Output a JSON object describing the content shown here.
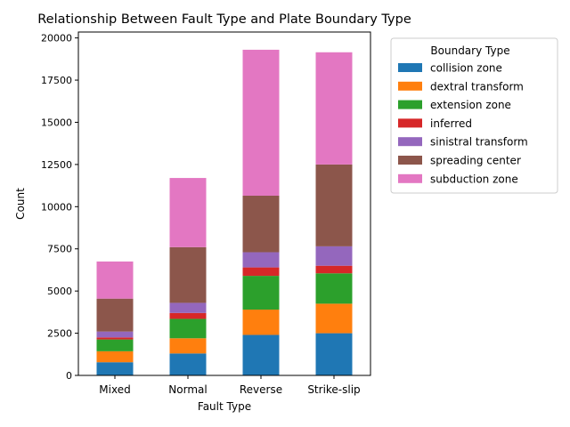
{
  "chart_data": {
    "type": "bar",
    "stacked": true,
    "title": "Relationship Between Fault Type and Plate Boundary Type",
    "xlabel": "Fault Type",
    "ylabel": "Count",
    "categories": [
      "Mixed",
      "Normal",
      "Reverse",
      "Strike-slip"
    ],
    "ylim": [
      0,
      20350
    ],
    "yticks": [
      0,
      2500,
      5000,
      7500,
      10000,
      12500,
      15000,
      17500,
      20000
    ],
    "grid": false,
    "legend_title": "Boundary Type",
    "legend_position": "outside right, top",
    "series": [
      {
        "name": "collision zone",
        "color": "#1f77b4",
        "values": [
          780,
          1300,
          2400,
          2500
        ]
      },
      {
        "name": "dextral transform",
        "color": "#ff7f0e",
        "values": [
          650,
          900,
          1500,
          1750
        ]
      },
      {
        "name": "extension zone",
        "color": "#2ca02c",
        "values": [
          700,
          1150,
          2000,
          1800
        ]
      },
      {
        "name": "inferred",
        "color": "#d62728",
        "values": [
          120,
          350,
          500,
          450
        ]
      },
      {
        "name": "sinistral transform",
        "color": "#9467bd",
        "values": [
          350,
          600,
          900,
          1150
        ]
      },
      {
        "name": "spreading center",
        "color": "#8c564b",
        "values": [
          1950,
          3300,
          3350,
          4850
        ]
      },
      {
        "name": "subduction zone",
        "color": "#e377c2",
        "values": [
          2200,
          4100,
          8650,
          6650
        ]
      }
    ]
  }
}
